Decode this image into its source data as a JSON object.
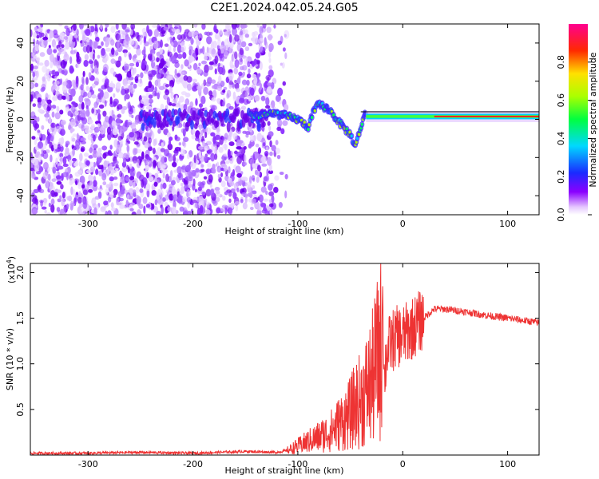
{
  "title": "C2E1.2024.042.05.24.G05",
  "chart_data": [
    {
      "type": "heatmap",
      "name": "spectrogram",
      "xlabel": "Height of straight line (km)",
      "ylabel": "Frequency (Hz)",
      "xlim": [
        -355,
        130
      ],
      "ylim": [
        -50,
        50
      ],
      "xticks": [
        -300,
        -200,
        -100,
        0,
        100
      ],
      "xtick_labels": [
        "-300",
        "-200",
        "-100",
        "0",
        "100"
      ],
      "yticks": [
        -40,
        -20,
        0,
        20,
        40
      ],
      "ytick_labels": [
        "-40",
        "-20",
        "0",
        "20",
        "40"
      ],
      "colorbar": {
        "label": "Normalized spectral amplitude",
        "range": [
          0,
          1
        ],
        "ticks": [
          0.0,
          0.2,
          0.4,
          0.6,
          0.8
        ],
        "tick_labels": [
          "0.0",
          "0.2",
          "0.4",
          "0.6",
          "0.8"
        ]
      },
      "ridge": {
        "x": [
          -140,
          -120,
          -100,
          -90,
          -85,
          -80,
          -70,
          -60,
          -50,
          -45,
          -40,
          -35,
          -30,
          -20,
          -10,
          0,
          20,
          40,
          60,
          80,
          100,
          130
        ],
        "freq": [
          2,
          3,
          0,
          -4,
          4,
          8,
          5,
          -2,
          -8,
          -14,
          -4,
          4,
          2,
          0,
          1,
          1,
          1,
          1.5,
          2,
          2,
          2,
          2
        ]
      },
      "grid": false,
      "legend": "none"
    },
    {
      "type": "line",
      "name": "snr",
      "xlabel": "Height of straight line (km)",
      "ylabel": "SNR (10 * v/v)",
      "multiplier_label": "(x10",
      "multiplier_exp": "4",
      "xlim": [
        -355,
        130
      ],
      "ylim": [
        0,
        2.1
      ],
      "xticks": [
        -300,
        -200,
        -100,
        0,
        100
      ],
      "xtick_labels": [
        "-300",
        "-200",
        "-100",
        "0",
        "100"
      ],
      "yticks": [
        0.5,
        1.0,
        1.5,
        2.0
      ],
      "ytick_labels": [
        "0.5",
        "1.0",
        "1.5",
        "2.0"
      ],
      "color": "#ee3333",
      "x": [
        -355,
        -300,
        -250,
        -200,
        -150,
        -120,
        -110,
        -100,
        -90,
        -80,
        -70,
        -60,
        -50,
        -45,
        -40,
        -35,
        -30,
        -25,
        -20,
        -19,
        -18,
        -15,
        -10,
        -5,
        0,
        5,
        10,
        20,
        30,
        40,
        60,
        80,
        100,
        130
      ],
      "y": [
        0.02,
        0.02,
        0.03,
        0.02,
        0.04,
        0.03,
        0.05,
        0.1,
        0.15,
        0.2,
        0.25,
        0.35,
        0.45,
        0.55,
        0.6,
        0.7,
        0.8,
        1.0,
        1.2,
        2.05,
        0.8,
        1.15,
        1.25,
        1.3,
        1.3,
        1.35,
        1.4,
        1.5,
        1.6,
        1.6,
        1.57,
        1.53,
        1.5,
        1.45
      ],
      "grid": false,
      "legend": "none"
    }
  ]
}
